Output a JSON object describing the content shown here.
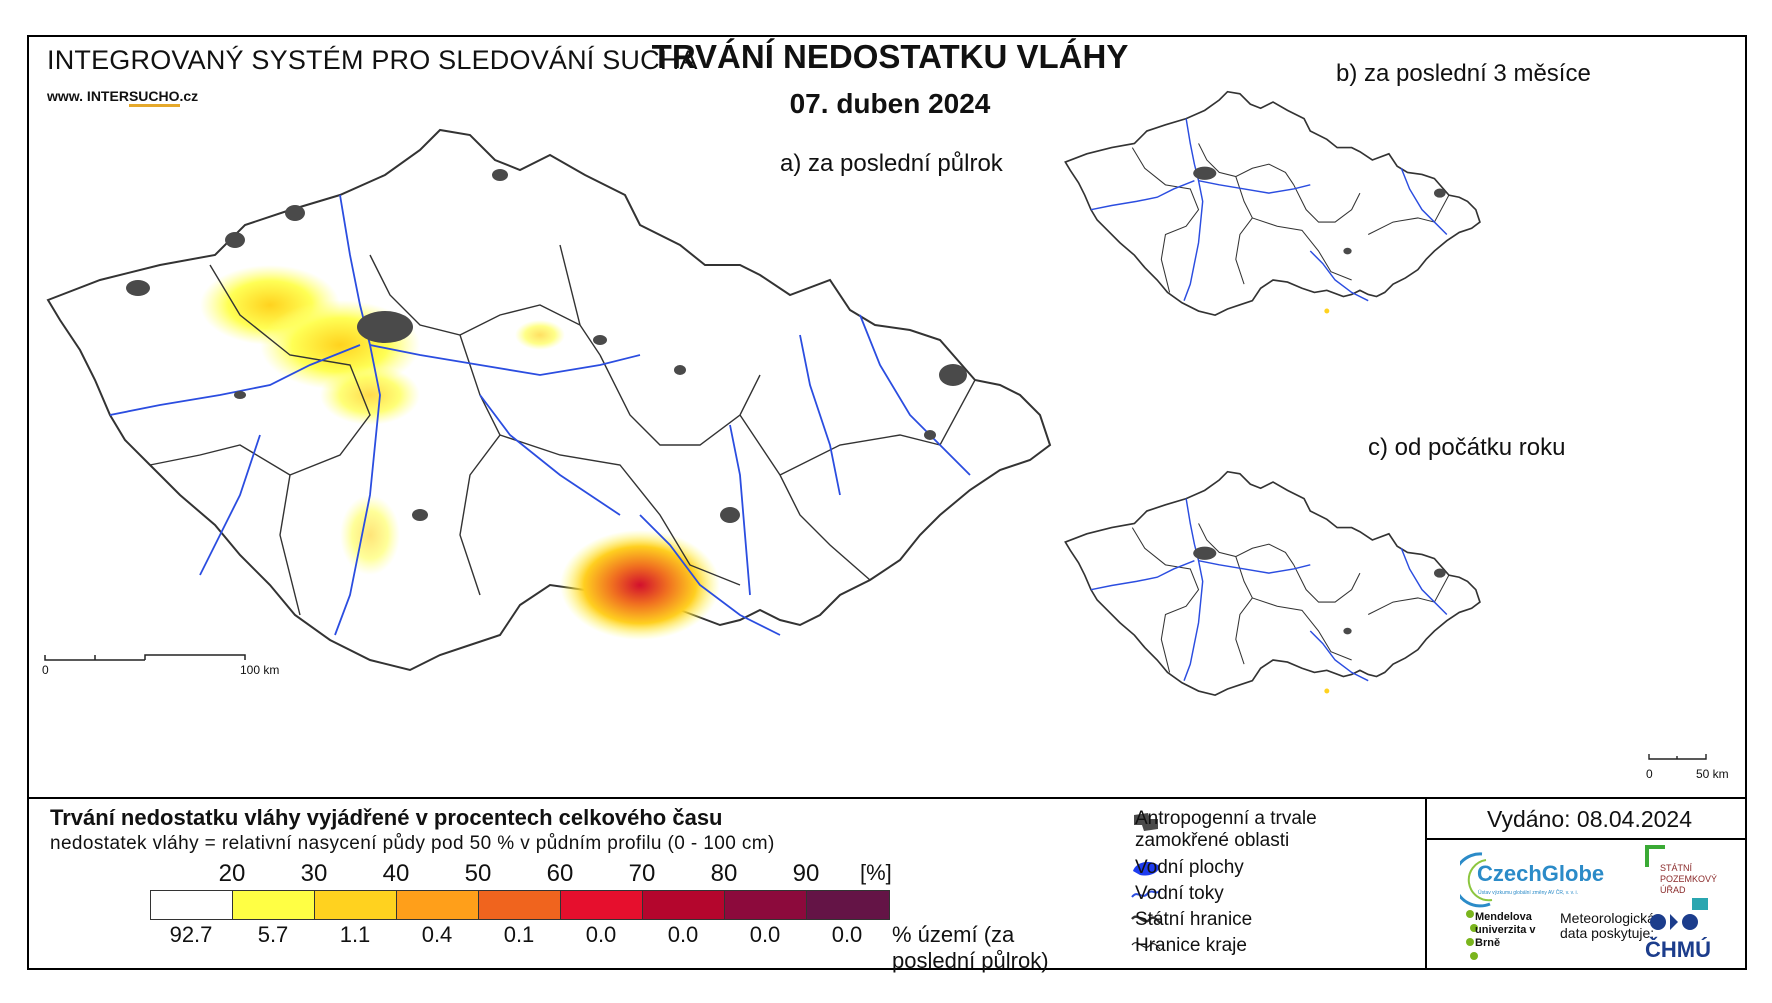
{
  "header": {
    "system_title": "INTEGROVANÝ SYSTÉM PRO SLEDOVÁNÍ SUCHA",
    "website_prefix": "www. INTER",
    "website_mid": "SUCHO",
    "website_suffix": ".cz",
    "main_title": "TRVÁNÍ NEDOSTATKU VLÁHY",
    "date": "07. duben 2024"
  },
  "panels": {
    "a": "a) za poslední půlrok",
    "b": "b) za poslední 3 měsíce",
    "c": "c) od počátku roku"
  },
  "scalebars": {
    "main_start": "0",
    "main_end": "100 km",
    "small_start": "0",
    "small_end": "50 km"
  },
  "legend": {
    "title": "Trvání nedostatku vláhy vyjádřené v procentech celkového času",
    "subtitle": "nedostatek vláhy = relativní nasycení půdy pod 50 % v půdním profilu (0 - 100 cm)",
    "unit": "[%]",
    "thresholds": [
      "20",
      "30",
      "40",
      "50",
      "60",
      "70",
      "80",
      "90"
    ],
    "colors": [
      "#ffffff",
      "#ffff44",
      "#ffd21f",
      "#ff9f1a",
      "#f0641e",
      "#e60f2d",
      "#b4062d",
      "#8c0a3c",
      "#641446"
    ],
    "area_percent": [
      "92.7",
      "5.7",
      "1.1",
      "0.4",
      "0.1",
      "0.0",
      "0.0",
      "0.0",
      "0.0"
    ],
    "area_note": "% území (za poslední půlrok)"
  },
  "map_key": {
    "urban": "Antropogenní a trvale zamokřené oblasti",
    "water_bodies": "Vodní plochy",
    "rivers": "Vodní toky",
    "state_border": "Státní hranice",
    "region_border": "Hranice kraje"
  },
  "issued": "Vydáno: 08.04.2024",
  "logos": {
    "czechglobe": "CzechGlobe",
    "czechglobe_sub": "Ústav výzkumu globální změny AV ČR, v. v. i.",
    "spu": "STÁTNÍ POZEMKOVÝ ÚŘAD",
    "mendel": "Mendelova univerzita v Brně",
    "meteo": "Meteorologická data poskytuje:",
    "chmu": "ČHMÚ"
  }
}
